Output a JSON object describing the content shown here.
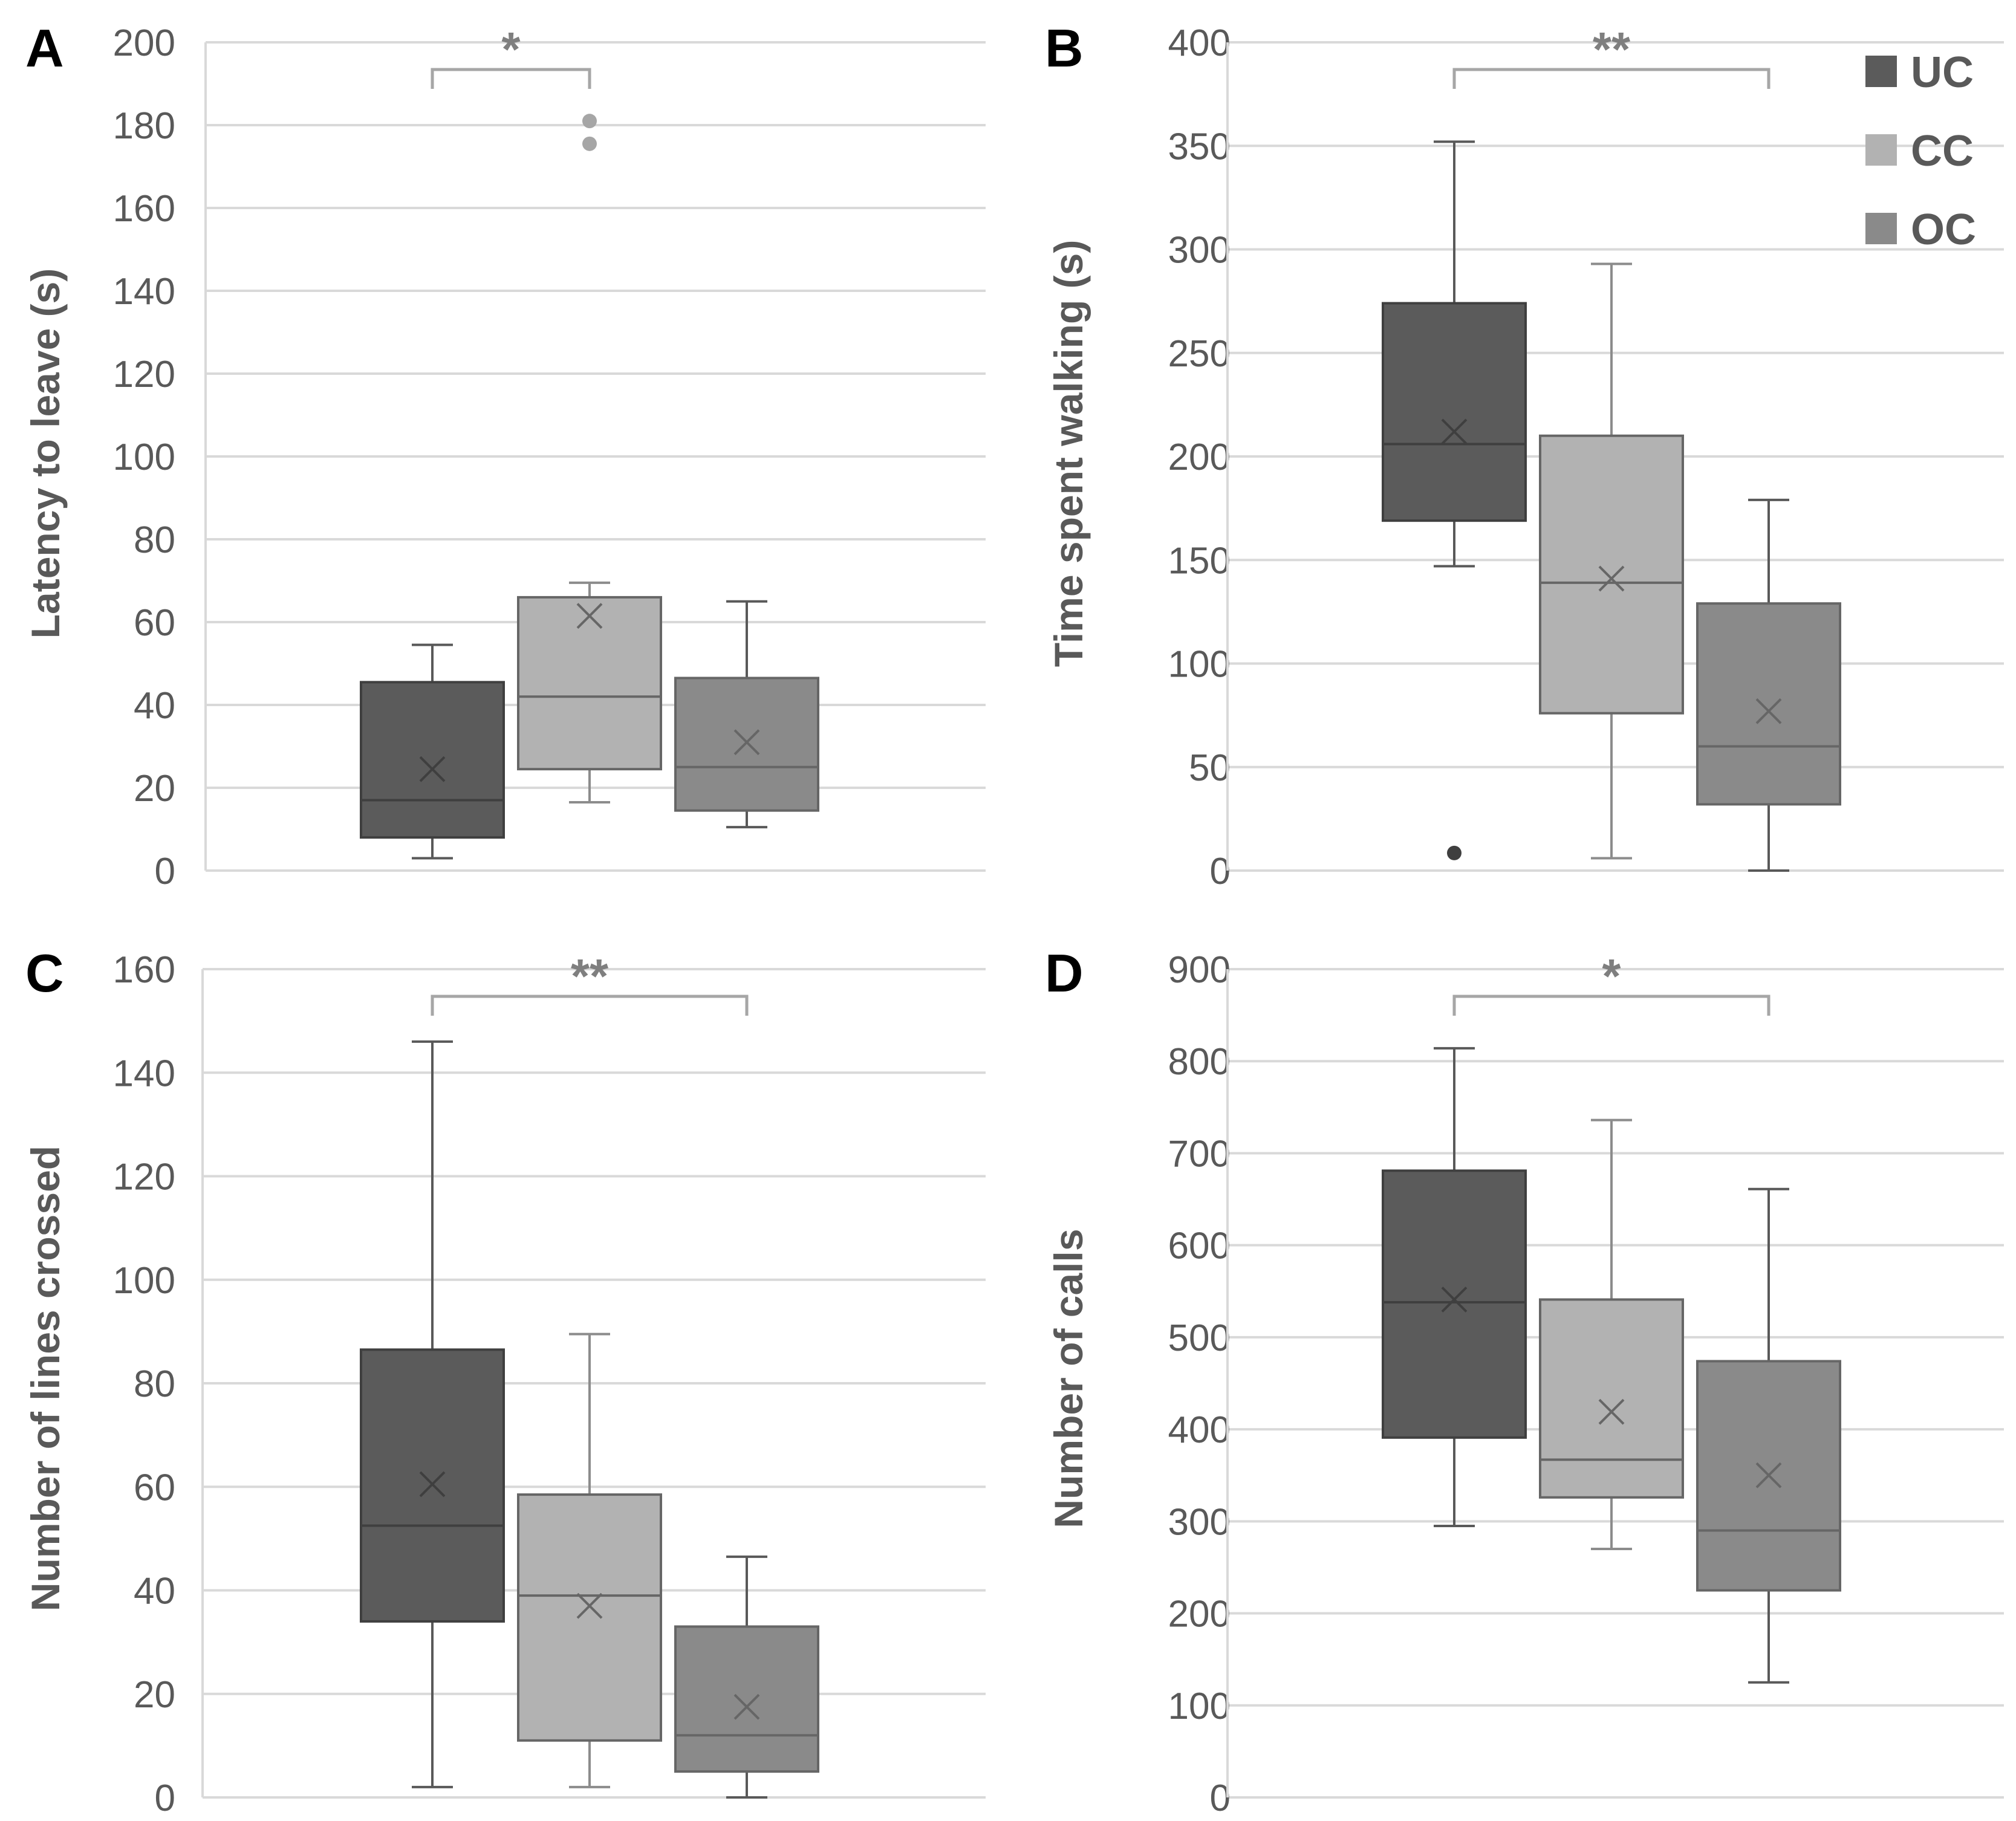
{
  "colors": {
    "UC": "#5b5b5b",
    "CC": "#b2b2b2",
    "OC": "#8a8a8a",
    "grid": "#d9d9d9",
    "text": "#595959",
    "bracket": "#a6a6a6"
  },
  "legend": [
    {
      "name": "UC",
      "label": "UC"
    },
    {
      "name": "CC",
      "label": "CC"
    },
    {
      "name": "OC",
      "label": "OC"
    }
  ],
  "chart_data": [
    {
      "type": "box",
      "panel": "A",
      "ylabel": "Latency to leave (s)",
      "ylim": [
        0,
        200
      ],
      "yticks": [
        "0",
        "20",
        "40",
        "60",
        "80",
        "100",
        "120",
        "140",
        "160",
        "180",
        "200"
      ],
      "categories": [
        "UC",
        "CC",
        "OC"
      ],
      "series": [
        {
          "name": "UC",
          "min": 3,
          "q1": 8,
          "median": 17,
          "q3": 45.5,
          "max": 54.5,
          "mean": 24.5,
          "outliers": []
        },
        {
          "name": "CC",
          "min": 16.5,
          "q1": 24.5,
          "median": 42,
          "q3": 66,
          "max": 69.5,
          "mean": 61.5,
          "outliers": [
            175.5,
            181
          ]
        },
        {
          "name": "OC",
          "min": 10.5,
          "q1": 14.5,
          "median": 25,
          "q3": 46.5,
          "max": 65,
          "mean": 31,
          "outliers": []
        }
      ],
      "significance": {
        "from": 0,
        "to": 1,
        "label": "*"
      }
    },
    {
      "type": "box",
      "panel": "B",
      "ylabel": "Time spent walking (s)",
      "ylim": [
        0,
        400
      ],
      "yticks": [
        "0",
        "50",
        "100",
        "150",
        "200",
        "250",
        "300",
        "350",
        "400"
      ],
      "categories": [
        "UC",
        "CC",
        "OC"
      ],
      "series": [
        {
          "name": "UC",
          "min": 147,
          "q1": 169,
          "median": 206,
          "q3": 274,
          "max": 352,
          "mean": 212,
          "outliers": [
            8.5
          ]
        },
        {
          "name": "CC",
          "min": 6,
          "q1": 76,
          "median": 139,
          "q3": 210,
          "max": 293,
          "mean": 141,
          "outliers": []
        },
        {
          "name": "OC",
          "min": 0,
          "q1": 32,
          "median": 60,
          "q3": 129,
          "max": 179,
          "mean": 77,
          "outliers": []
        }
      ],
      "significance": {
        "from": 0,
        "to": 2,
        "label": "**"
      }
    },
    {
      "type": "box",
      "panel": "C",
      "ylabel": "Number of lines crossed",
      "ylim": [
        0,
        160
      ],
      "yticks": [
        "0",
        "20",
        "40",
        "60",
        "80",
        "100",
        "120",
        "140",
        "160"
      ],
      "categories": [
        "UC",
        "CC",
        "OC"
      ],
      "series": [
        {
          "name": "UC",
          "min": 2,
          "q1": 34,
          "median": 52.5,
          "q3": 86.5,
          "max": 146,
          "mean": 60.5,
          "outliers": []
        },
        {
          "name": "CC",
          "min": 2,
          "q1": 11,
          "median": 39,
          "q3": 58.5,
          "max": 89.5,
          "mean": 37,
          "outliers": []
        },
        {
          "name": "OC",
          "min": 0,
          "q1": 5,
          "median": 12,
          "q3": 33,
          "max": 46.5,
          "mean": 17.5,
          "outliers": []
        }
      ],
      "significance": {
        "from": 0,
        "to": 2,
        "label": "**"
      }
    },
    {
      "type": "box",
      "panel": "D",
      "ylabel": "Number of calls",
      "ylim": [
        0,
        900
      ],
      "yticks": [
        "0",
        "100",
        "200",
        "300",
        "400",
        "500",
        "600",
        "700",
        "800",
        "900"
      ],
      "categories": [
        "UC",
        "CC",
        "OC"
      ],
      "series": [
        {
          "name": "UC",
          "min": 295,
          "q1": 391,
          "median": 538,
          "q3": 681,
          "max": 814,
          "mean": 541,
          "outliers": []
        },
        {
          "name": "CC",
          "min": 270,
          "q1": 326,
          "median": 367,
          "q3": 541,
          "max": 736,
          "mean": 419,
          "outliers": []
        },
        {
          "name": "OC",
          "min": 125,
          "q1": 225,
          "median": 290,
          "q3": 474,
          "max": 661,
          "mean": 350,
          "outliers": []
        }
      ],
      "significance": {
        "from": 0,
        "to": 2,
        "label": "*"
      }
    }
  ]
}
